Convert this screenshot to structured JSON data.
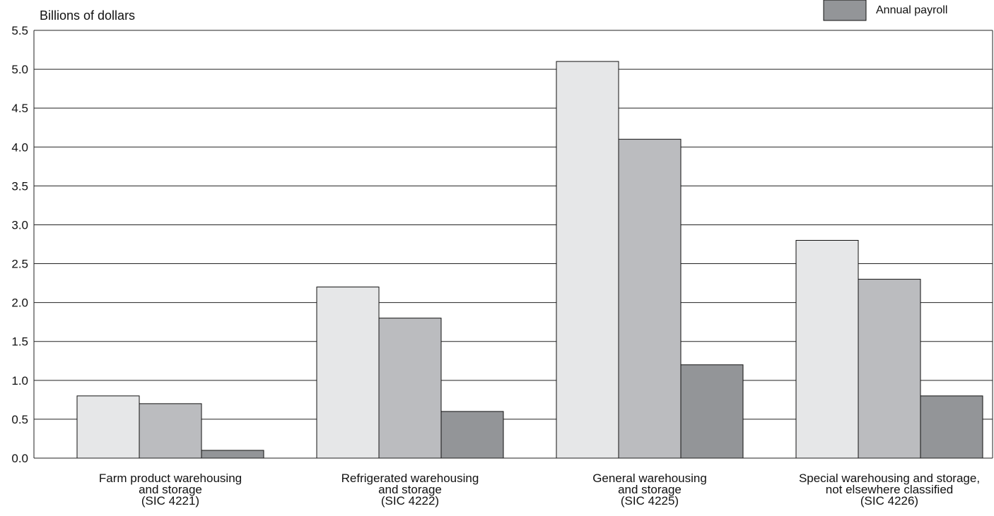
{
  "chart_data": {
    "type": "bar",
    "ylabel": "Billions of dollars",
    "ylim": [
      0,
      5.5
    ],
    "yticks": [
      "0.0",
      "0.5",
      "1.0",
      "1.5",
      "2.0",
      "2.5",
      "3.0",
      "3.5",
      "4.0",
      "4.5",
      "5.0",
      "5.5"
    ],
    "grid": true,
    "legend_position": "top-right",
    "categories": [
      [
        "Farm product warehousing",
        "and storage",
        "(SIC 4221)"
      ],
      [
        "Refrigerated warehousing",
        "and storage",
        "(SIC 4222)"
      ],
      [
        "General warehousing",
        "and storage",
        "(SIC 4225)"
      ],
      [
        "Special warehousing and storage,",
        "not elsewhere classified",
        "(SIC 4226)"
      ]
    ],
    "series": [
      {
        "values": [
          0.8,
          2.2,
          5.1,
          2.8
        ],
        "color": "#e6e7e8"
      },
      {
        "values": [
          0.7,
          1.8,
          4.1,
          2.3
        ],
        "color": "#bbbcbf"
      },
      {
        "name": "Annual payroll",
        "values": [
          0.1,
          0.6,
          1.2,
          0.8
        ],
        "color": "#939598"
      }
    ]
  }
}
